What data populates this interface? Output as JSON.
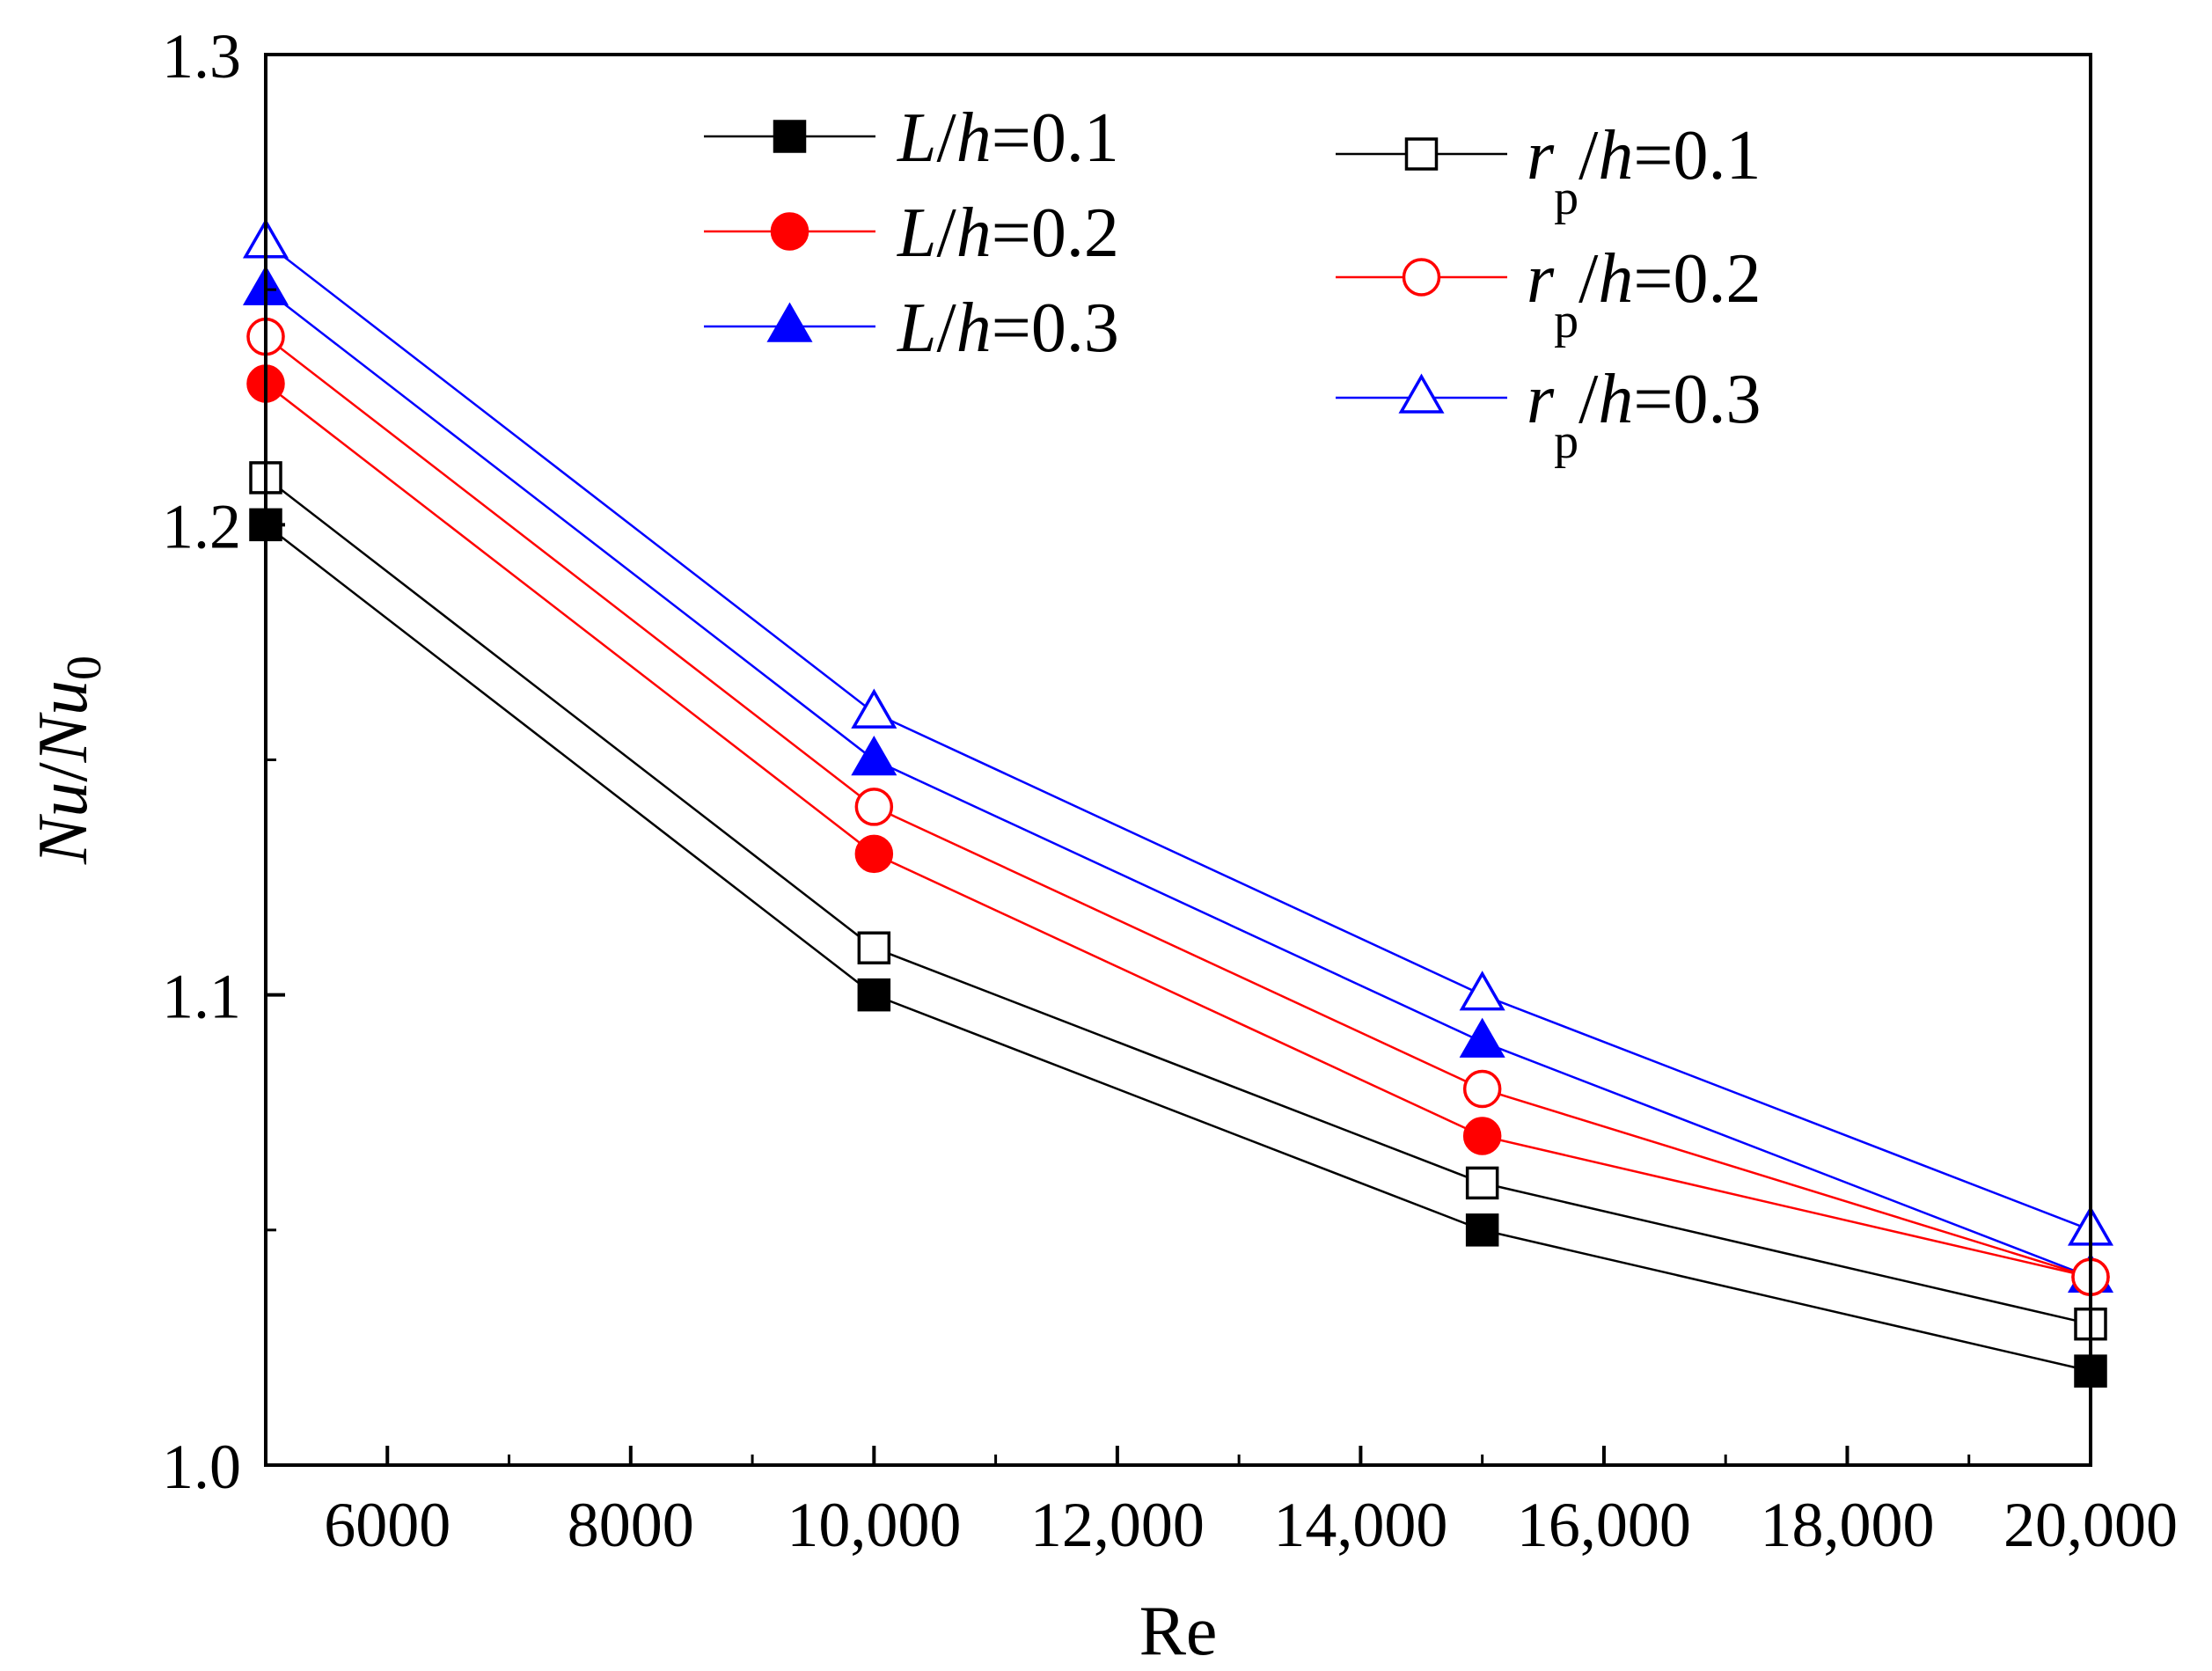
{
  "chart_data": {
    "type": "line",
    "title": "",
    "xlabel": "Re",
    "ylabel": {
      "a": "Nu",
      "slash": "/",
      "b": "Nu",
      "sub": "0"
    },
    "xlim": [
      5000,
      20000
    ],
    "ylim": [
      1.0,
      1.3
    ],
    "xticks": [
      {
        "value": 6000,
        "label": "6000"
      },
      {
        "value": 8000,
        "label": "8000"
      },
      {
        "value": 10000,
        "label": "10,000"
      },
      {
        "value": 12000,
        "label": "12,000"
      },
      {
        "value": 14000,
        "label": "14,000"
      },
      {
        "value": 16000,
        "label": "16,000"
      },
      {
        "value": 18000,
        "label": "18,000"
      },
      {
        "value": 20000,
        "label": "20,000"
      }
    ],
    "yticks": [
      {
        "value": 1.0,
        "label": "1.0"
      },
      {
        "value": 1.1,
        "label": "1.1"
      },
      {
        "value": 1.2,
        "label": "1.2"
      },
      {
        "value": 1.3,
        "label": "1.3"
      }
    ],
    "x": [
      5000,
      10000,
      15000,
      20000
    ],
    "series": [
      {
        "id": "L01",
        "marker": "square",
        "filled": true,
        "color": "#000000",
        "label": {
          "sym": "L",
          "sub": "",
          "slash": "/",
          "h": "h",
          "val": "=0.1"
        },
        "values": [
          1.2,
          1.1,
          1.05,
          1.02
        ]
      },
      {
        "id": "L02",
        "marker": "circle",
        "filled": true,
        "color": "#ff0000",
        "label": {
          "sym": "L",
          "sub": "",
          "slash": "/",
          "h": "h",
          "val": "=0.2"
        },
        "values": [
          1.23,
          1.13,
          1.07,
          1.04
        ]
      },
      {
        "id": "L03",
        "marker": "triangle",
        "filled": true,
        "color": "#0000ff",
        "label": {
          "sym": "L",
          "sub": "",
          "slash": "/",
          "h": "h",
          "val": "=0.3"
        },
        "values": [
          1.25,
          1.15,
          1.09,
          1.04
        ]
      },
      {
        "id": "rp01",
        "marker": "square",
        "filled": false,
        "color": "#000000",
        "label": {
          "sym": "r",
          "sub": "p",
          "slash": "/",
          "h": "h",
          "val": "=0.1"
        },
        "values": [
          1.21,
          1.11,
          1.06,
          1.03
        ]
      },
      {
        "id": "rp02",
        "marker": "circle",
        "filled": false,
        "color": "#ff0000",
        "label": {
          "sym": "r",
          "sub": "p",
          "slash": "/",
          "h": "h",
          "val": "=0.2"
        },
        "values": [
          1.24,
          1.14,
          1.08,
          1.04
        ]
      },
      {
        "id": "rp03",
        "marker": "triangle",
        "filled": false,
        "color": "#0000ff",
        "label": {
          "sym": "r",
          "sub": "p",
          "slash": "/",
          "h": "h",
          "val": "=0.3"
        },
        "values": [
          1.26,
          1.16,
          1.1,
          1.05
        ]
      }
    ]
  }
}
